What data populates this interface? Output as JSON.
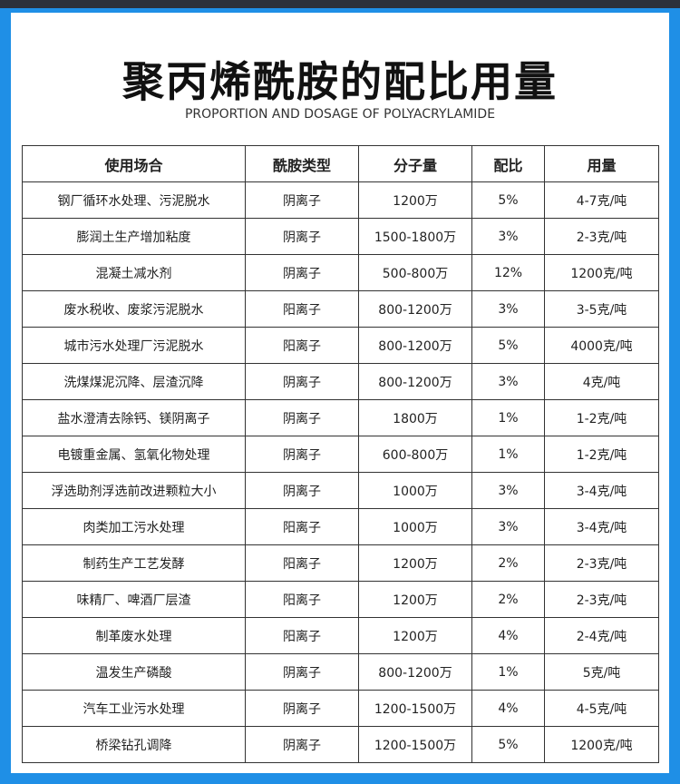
{
  "header": {
    "title": "聚丙烯酰胺的配比用量",
    "subtitle": "PROPORTION AND DOSAGE OF POLYACRYLAMIDE"
  },
  "table": {
    "columns": [
      "使用场合",
      "酰胺类型",
      "分子量",
      "配比",
      "用量"
    ],
    "rows": [
      [
        "钢厂循环水处理、污泥脱水",
        "阴离子",
        "1200万",
        "5%",
        "4-7克/吨"
      ],
      [
        "膨润土生产增加粘度",
        "阴离子",
        "1500-1800万",
        "3%",
        "2-3克/吨"
      ],
      [
        "混凝土减水剂",
        "阴离子",
        "500-800万",
        "12%",
        "1200克/吨"
      ],
      [
        "废水税收、废浆污泥脱水",
        "阳离子",
        "800-1200万",
        "3%",
        "3-5克/吨"
      ],
      [
        "城市污水处理厂污泥脱水",
        "阳离子",
        "800-1200万",
        "5%",
        "4000克/吨"
      ],
      [
        "洗煤煤泥沉降、层渣沉降",
        "阴离子",
        "800-1200万",
        "3%",
        "4克/吨"
      ],
      [
        "盐水澄清去除钙、镁阴离子",
        "阴离子",
        "1800万",
        "1%",
        "1-2克/吨"
      ],
      [
        "电镀重金属、氢氧化物处理",
        "阴离子",
        "600-800万",
        "1%",
        "1-2克/吨"
      ],
      [
        "浮选助剂浮选前改进颗粒大小",
        "阴离子",
        "1000万",
        "3%",
        "3-4克/吨"
      ],
      [
        "肉类加工污水处理",
        "阳离子",
        "1000万",
        "3%",
        "3-4克/吨"
      ],
      [
        "制药生产工艺发酵",
        "阳离子",
        "1200万",
        "2%",
        "2-3克/吨"
      ],
      [
        "味精厂、啤酒厂层渣",
        "阳离子",
        "1200万",
        "2%",
        "2-3克/吨"
      ],
      [
        "制革废水处理",
        "阳离子",
        "1200万",
        "4%",
        "2-4克/吨"
      ],
      [
        "温发生产磷酸",
        "阴离子",
        "800-1200万",
        "1%",
        "5克/吨"
      ],
      [
        "汽车工业污水处理",
        "阴离子",
        "1200-1500万",
        "4%",
        "4-5克/吨"
      ],
      [
        "桥梁钻孔调降",
        "阴离子",
        "1200-1500万",
        "5%",
        "1200克/吨"
      ]
    ]
  }
}
